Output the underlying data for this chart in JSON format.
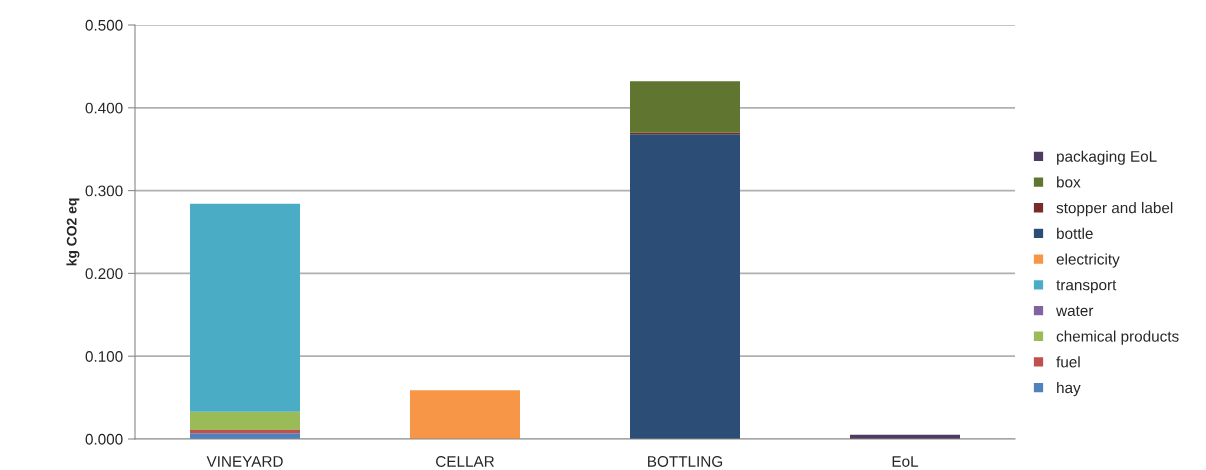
{
  "chart_data": {
    "type": "bar",
    "stacked": true,
    "ylabel": "kg CO2 eq",
    "categories": [
      "VINEYARD",
      "CELLAR",
      "BOTTLING",
      "EoL"
    ],
    "series": [
      {
        "name": "hay",
        "color": "#4f81bd",
        "values": [
          0.007,
          0,
          0,
          0
        ]
      },
      {
        "name": "fuel",
        "color": "#c0504d",
        "values": [
          0.004,
          0,
          0,
          0
        ]
      },
      {
        "name": "chemical products",
        "color": "#9bbb59",
        "values": [
          0.022,
          0,
          0,
          0
        ]
      },
      {
        "name": "water",
        "color": "#8064a2",
        "values": [
          0,
          0,
          0,
          0
        ]
      },
      {
        "name": "transport",
        "color": "#4bacc6",
        "values": [
          0.251,
          0,
          0,
          0
        ]
      },
      {
        "name": "electricity",
        "color": "#f79646",
        "values": [
          0,
          0.059,
          0,
          0
        ]
      },
      {
        "name": "bottle",
        "color": "#2c4d75",
        "values": [
          0,
          0,
          0.368,
          0
        ]
      },
      {
        "name": "stopper and label",
        "color": "#772c2a",
        "values": [
          0,
          0,
          0.002,
          0
        ]
      },
      {
        "name": "box",
        "color": "#5f7530",
        "values": [
          0,
          0,
          0.062,
          0
        ]
      },
      {
        "name": "packaging EoL",
        "color": "#4d3b62",
        "values": [
          0,
          0,
          0,
          0.005
        ]
      }
    ],
    "ylim": [
      0,
      0.5
    ],
    "yticks": [
      {
        "value": 0,
        "label": "0.000"
      },
      {
        "value": 0.1,
        "label": "0.100"
      },
      {
        "value": 0.2,
        "label": "0.200"
      },
      {
        "value": 0.3,
        "label": "0.300"
      },
      {
        "value": 0.4,
        "label": "0.400"
      },
      {
        "value": 0.5,
        "label": "0.500"
      }
    ],
    "grid": "y",
    "legend": "right"
  }
}
